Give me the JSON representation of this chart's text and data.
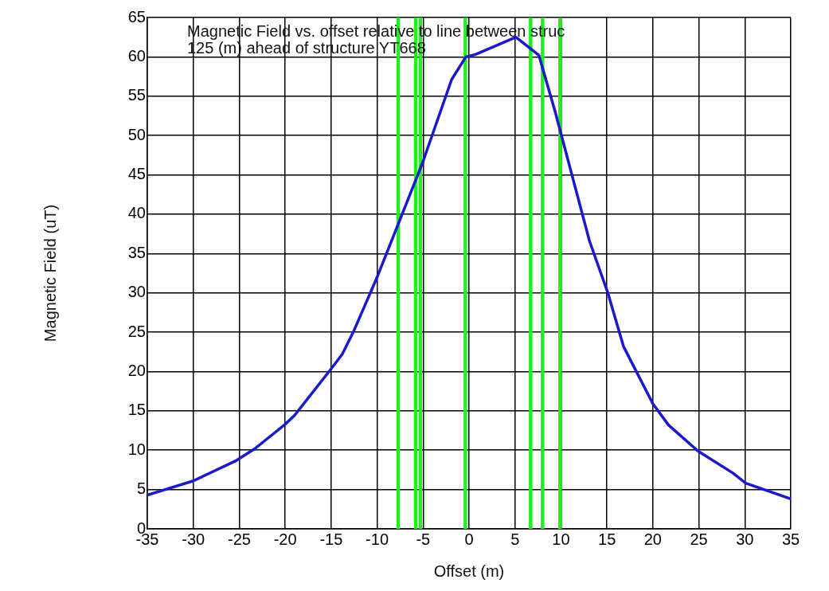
{
  "chart_data": {
    "type": "line",
    "title": "Magnetic Field vs. offset relative to line between struc",
    "subtitle": "125 (m) ahead of structure YT668",
    "xlabel": "Offset (m)",
    "ylabel": "Magnetic Field (uT)",
    "series": [
      {
        "color": "#1a1acc",
        "x": [
          -35,
          -30,
          -25.3,
          -23.3,
          -20.1,
          -19,
          -15.1,
          -13.8,
          -12.6,
          -10,
          -8.3,
          -5.1,
          -1.9,
          -0.35,
          0.7,
          5.1,
          7.6,
          9.35,
          13.1,
          15.1,
          16.8,
          20,
          21.7,
          24.9,
          28.7,
          30.1,
          35
        ],
        "values": [
          4.3,
          6.1,
          8.7,
          10.2,
          13.2,
          14.4,
          20.2,
          22.2,
          25,
          32,
          37,
          46.4,
          57.1,
          60,
          60.3,
          62.5,
          60.2,
          53.1,
          36.6,
          30,
          23.2,
          15.9,
          13.2,
          9.9,
          7.1,
          5.8,
          3.8
        ]
      }
    ],
    "ref_lines": [
      {
        "axis": "x",
        "value": -7.7,
        "color": "#22ee22"
      },
      {
        "axis": "x",
        "value": -5.8,
        "color": "#22ee22"
      },
      {
        "axis": "x",
        "value": -5.3,
        "color": "#22ee22"
      },
      {
        "axis": "x",
        "value": -0.4,
        "color": "#22ee22"
      },
      {
        "axis": "x",
        "value": 6.7,
        "color": "#22ee22"
      },
      {
        "axis": "x",
        "value": 8,
        "color": "#22ee22"
      },
      {
        "axis": "x",
        "value": 9.9,
        "color": "#22ee22"
      }
    ],
    "xlim": [
      -35,
      35
    ],
    "xticks": [
      -35,
      -30,
      -25,
      -20,
      -15,
      -10,
      -5,
      0,
      5,
      10,
      15,
      20,
      25,
      30,
      35
    ],
    "ylim": [
      0,
      65
    ],
    "yticks": [
      0,
      5,
      10,
      15,
      20,
      25,
      30,
      35,
      40,
      45,
      50,
      55,
      60,
      65
    ],
    "grid": true,
    "legend": false,
    "marker": "none",
    "line_style": "solid"
  }
}
